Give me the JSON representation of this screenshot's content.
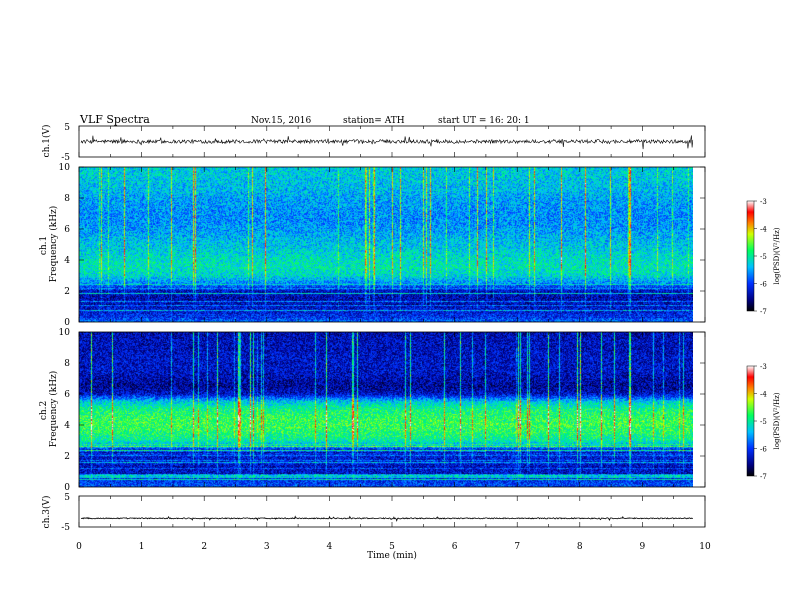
{
  "header": {
    "title": "VLF  Spectra",
    "date": "Nov.15, 2016",
    "station": "station= ATH",
    "start_ut": "start  UT  =    16: 20: 1"
  },
  "chart_data": [
    {
      "type": "line",
      "name": "ch1-waveform",
      "ylabel": "ch.1(V)",
      "ylim": [
        -5,
        5
      ],
      "yticks": [
        "5",
        "-5"
      ],
      "xlim": [
        0,
        10
      ],
      "baseline": 0,
      "noise_amplitude": 1.2
    },
    {
      "type": "heatmap",
      "name": "ch1-spectrogram",
      "ylabel": "ch.1\nFrequency  (kHz)",
      "ylim": [
        0,
        10
      ],
      "yticks": [
        "0",
        "2",
        "4",
        "6",
        "8",
        "10"
      ],
      "xlim": [
        0,
        9.8
      ],
      "colorbar": {
        "label": "log(PSD)(V²/Hz)",
        "range": [
          -7,
          -3
        ],
        "ticks": [
          "-3",
          "-4",
          "-5",
          "-6",
          "-7"
        ]
      },
      "profile_khz": [
        0,
        0.5,
        1,
        1.5,
        2,
        2.5,
        3,
        3.5,
        4,
        4.5,
        5,
        5.5,
        6,
        6.5,
        7,
        7.5,
        8,
        8.5,
        9,
        9.5,
        10
      ],
      "profile_log_psd": [
        -5.8,
        -6.2,
        -6.3,
        -6.4,
        -6.3,
        -5.6,
        -5.2,
        -5.1,
        -5.15,
        -5.25,
        -5.35,
        -5.45,
        -5.55,
        -5.6,
        -5.6,
        -5.55,
        -5.5,
        -5.4,
        -5.35,
        -5.3,
        -5.3
      ]
    },
    {
      "type": "heatmap",
      "name": "ch2-spectrogram",
      "ylabel": "ch.2\nFrequency  (kHz)",
      "ylim": [
        0,
        10
      ],
      "yticks": [
        "0",
        "2",
        "4",
        "6",
        "8",
        "10"
      ],
      "xlim": [
        0,
        9.8
      ],
      "colorbar": {
        "label": "log(PSD)(V²/Hz)",
        "range": [
          -7,
          -3
        ],
        "ticks": [
          "-3",
          "-4",
          "-5",
          "-6",
          "-7"
        ]
      },
      "profile_khz": [
        0,
        0.5,
        1,
        1.5,
        2,
        2.5,
        3,
        3.5,
        4,
        4.5,
        5,
        5.5,
        6,
        6.5,
        7,
        7.5,
        8,
        8.5,
        9,
        9.5,
        10
      ],
      "profile_log_psd": [
        -5.9,
        -6.1,
        -6.3,
        -6.3,
        -6.2,
        -5.7,
        -5.0,
        -4.8,
        -4.7,
        -4.75,
        -4.9,
        -5.3,
        -6.3,
        -6.5,
        -6.4,
        -6.3,
        -6.3,
        -6.3,
        -6.35,
        -6.35,
        -6.4
      ]
    },
    {
      "type": "line",
      "name": "ch3-waveform",
      "ylabel": "ch.3(V)",
      "ylim": [
        -5,
        5
      ],
      "yticks": [
        "5",
        "-5"
      ],
      "xlim": [
        0,
        10
      ],
      "baseline": -2.2,
      "noise_amplitude": 0.35
    }
  ],
  "x_axis": {
    "label": "Time  (min)",
    "ticks": [
      "0",
      "1",
      "2",
      "3",
      "4",
      "5",
      "6",
      "7",
      "8",
      "9",
      "10"
    ],
    "range": [
      0,
      10
    ]
  }
}
